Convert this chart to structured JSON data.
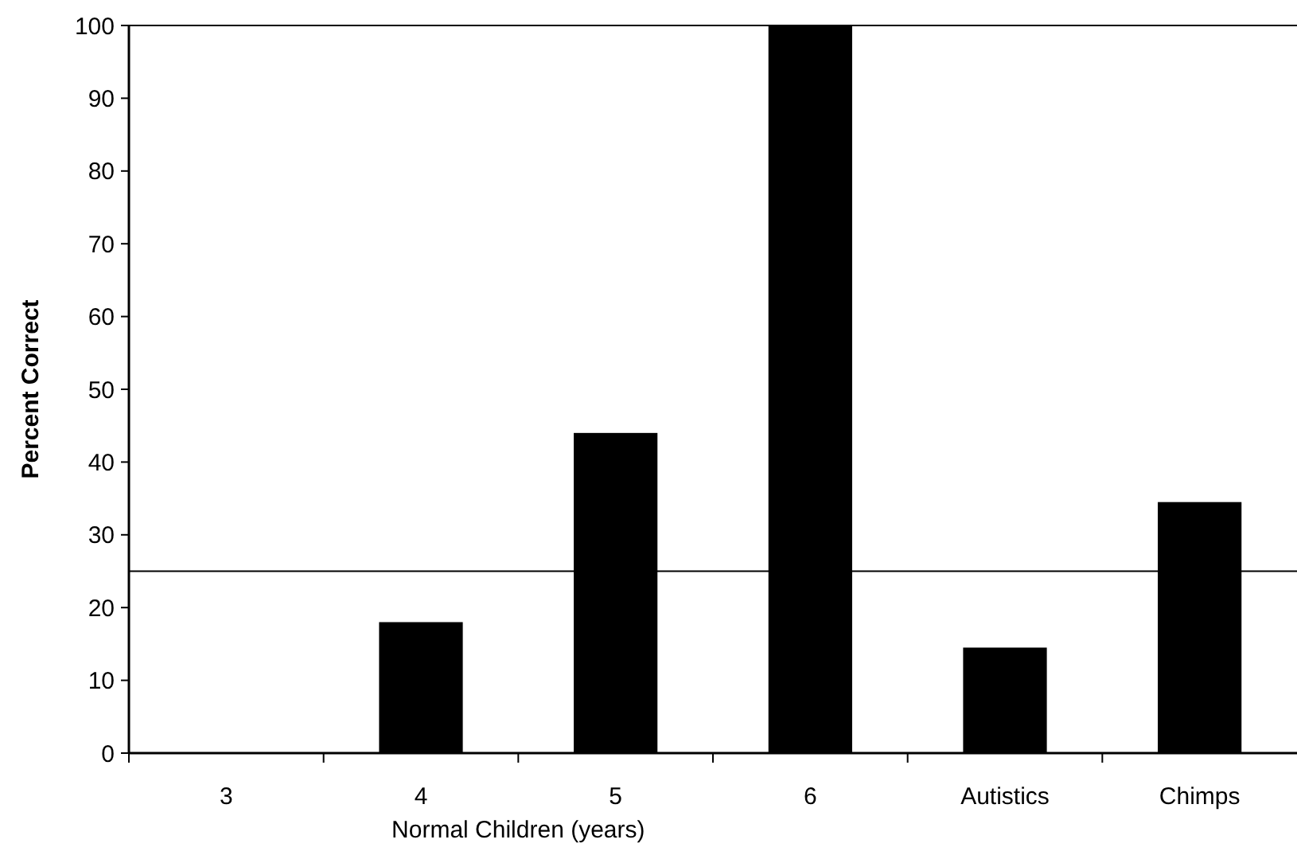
{
  "chart_data": {
    "type": "bar",
    "ylabel": "Percent Correct",
    "xlabel": "Normal Children (years)",
    "categories": [
      "3",
      "4",
      "5",
      "6",
      "Autistics",
      "Chimps"
    ],
    "values": [
      0,
      18,
      44,
      100,
      14.5,
      34.5
    ],
    "color": "#000000",
    "ylim": [
      0,
      100
    ],
    "yticks": [
      0,
      10,
      20,
      30,
      40,
      50,
      60,
      70,
      80,
      90,
      100
    ],
    "ref_lines": [
      {
        "axis": "y",
        "value": 25,
        "color": "#000000"
      }
    ],
    "grid": false
  }
}
